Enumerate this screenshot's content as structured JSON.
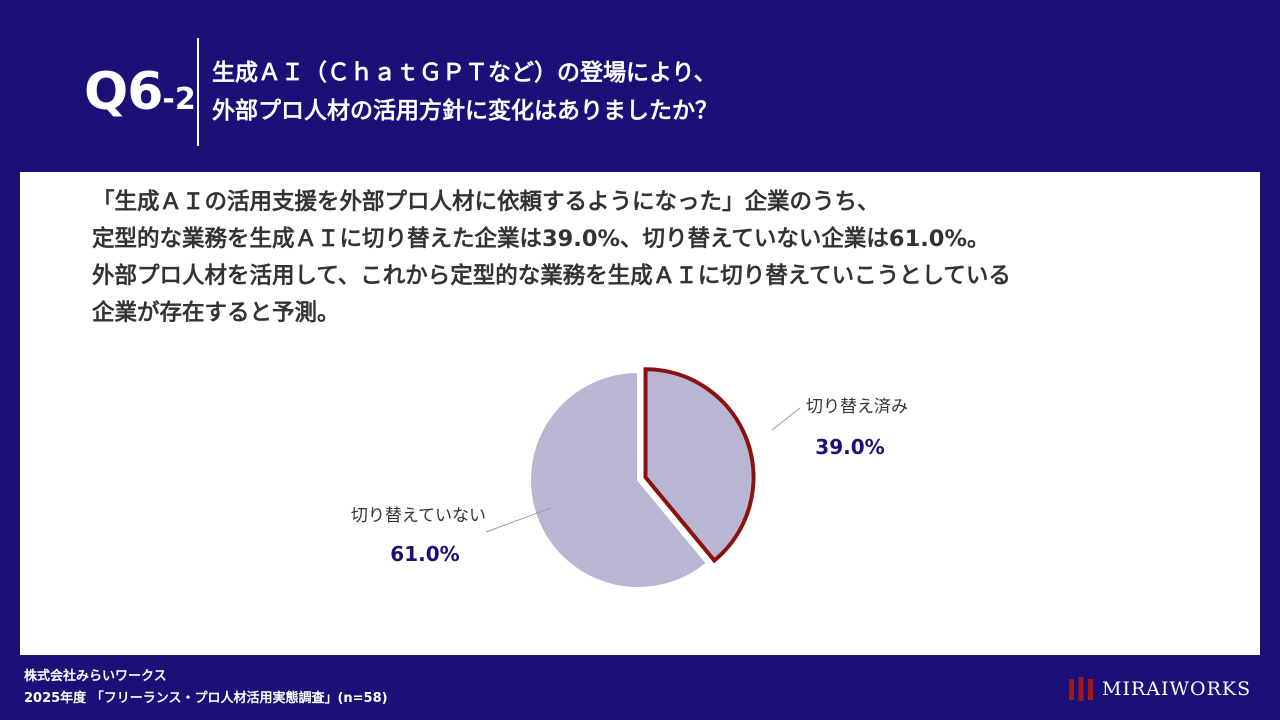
{
  "header": {
    "question_number": "Q6",
    "question_sub": "-2",
    "title_line1": "生成ＡＩ（ＣｈａｔＧＰＴなど）の登場により、",
    "title_line2": "外部プロ人材の活用方針に変化はありましたか？"
  },
  "summary": {
    "line1": "「生成ＡＩの活用支援を外部プロ人材に依頼するようになった」企業のうち、",
    "line2": "定型的な業務を生成ＡＩに切り替えた企業は39.0%、切り替えていない企業は61.0%。",
    "line3": "外部プロ人材を活用して、これから定型的な業務を生成ＡＩに切り替えていこうとしている",
    "line4": "企業が存在すると予測。"
  },
  "chart_data": {
    "type": "pie",
    "slices": [
      {
        "label": "切り替え済み",
        "value": 39.0,
        "display": "39.0%",
        "color": "#b9b6d3",
        "highlight_border": "#8b1010"
      },
      {
        "label": "切り替えていない",
        "value": 61.0,
        "display": "61.0%",
        "color": "#b9b6d3"
      }
    ],
    "start": "12 o'clock",
    "direction": "clockwise",
    "label_color": "#333333",
    "value_color": "#1a1078"
  },
  "footer": {
    "company": "株式会社みらいワークス",
    "survey": "2025年度 「フリーランス・プロ人材活用実態調査」(n=58)",
    "logo_text": "MIRAIWORKS"
  },
  "colors": {
    "background": "#1a1078",
    "panel": "#ffffff",
    "accent": "#8b1010"
  }
}
